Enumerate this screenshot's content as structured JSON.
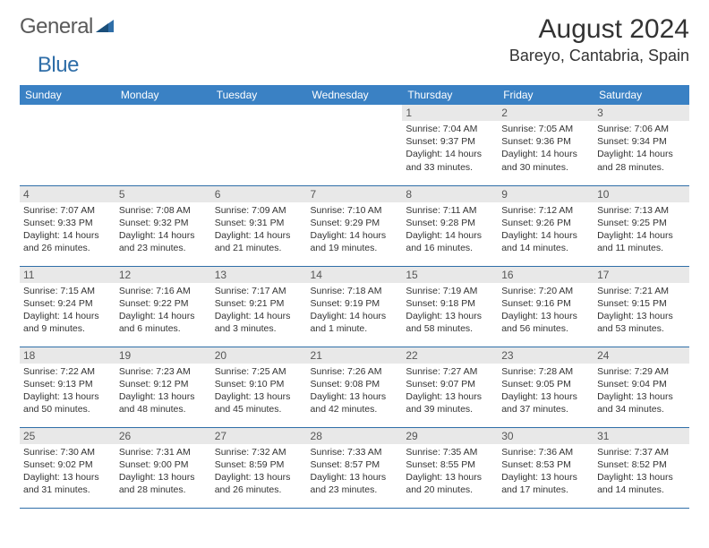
{
  "logo": {
    "text1": "General",
    "text2": "Blue"
  },
  "title": "August 2024",
  "location": "Bareyo, Cantabria, Spain",
  "colors": {
    "header_bg": "#3a81c4",
    "header_fg": "#ffffff",
    "daynum_bg": "#e8e8e8",
    "rule": "#2f6ea8",
    "text": "#333333",
    "logo_gray": "#5a5a5a",
    "logo_blue": "#2f6ea8"
  },
  "weekdays": [
    "Sunday",
    "Monday",
    "Tuesday",
    "Wednesday",
    "Thursday",
    "Friday",
    "Saturday"
  ],
  "leading_blanks": 4,
  "days": [
    {
      "n": "1",
      "sunrise": "7:04 AM",
      "sunset": "9:37 PM",
      "daylight": "14 hours and 33 minutes."
    },
    {
      "n": "2",
      "sunrise": "7:05 AM",
      "sunset": "9:36 PM",
      "daylight": "14 hours and 30 minutes."
    },
    {
      "n": "3",
      "sunrise": "7:06 AM",
      "sunset": "9:34 PM",
      "daylight": "14 hours and 28 minutes."
    },
    {
      "n": "4",
      "sunrise": "7:07 AM",
      "sunset": "9:33 PM",
      "daylight": "14 hours and 26 minutes."
    },
    {
      "n": "5",
      "sunrise": "7:08 AM",
      "sunset": "9:32 PM",
      "daylight": "14 hours and 23 minutes."
    },
    {
      "n": "6",
      "sunrise": "7:09 AM",
      "sunset": "9:31 PM",
      "daylight": "14 hours and 21 minutes."
    },
    {
      "n": "7",
      "sunrise": "7:10 AM",
      "sunset": "9:29 PM",
      "daylight": "14 hours and 19 minutes."
    },
    {
      "n": "8",
      "sunrise": "7:11 AM",
      "sunset": "9:28 PM",
      "daylight": "14 hours and 16 minutes."
    },
    {
      "n": "9",
      "sunrise": "7:12 AM",
      "sunset": "9:26 PM",
      "daylight": "14 hours and 14 minutes."
    },
    {
      "n": "10",
      "sunrise": "7:13 AM",
      "sunset": "9:25 PM",
      "daylight": "14 hours and 11 minutes."
    },
    {
      "n": "11",
      "sunrise": "7:15 AM",
      "sunset": "9:24 PM",
      "daylight": "14 hours and 9 minutes."
    },
    {
      "n": "12",
      "sunrise": "7:16 AM",
      "sunset": "9:22 PM",
      "daylight": "14 hours and 6 minutes."
    },
    {
      "n": "13",
      "sunrise": "7:17 AM",
      "sunset": "9:21 PM",
      "daylight": "14 hours and 3 minutes."
    },
    {
      "n": "14",
      "sunrise": "7:18 AM",
      "sunset": "9:19 PM",
      "daylight": "14 hours and 1 minute."
    },
    {
      "n": "15",
      "sunrise": "7:19 AM",
      "sunset": "9:18 PM",
      "daylight": "13 hours and 58 minutes."
    },
    {
      "n": "16",
      "sunrise": "7:20 AM",
      "sunset": "9:16 PM",
      "daylight": "13 hours and 56 minutes."
    },
    {
      "n": "17",
      "sunrise": "7:21 AM",
      "sunset": "9:15 PM",
      "daylight": "13 hours and 53 minutes."
    },
    {
      "n": "18",
      "sunrise": "7:22 AM",
      "sunset": "9:13 PM",
      "daylight": "13 hours and 50 minutes."
    },
    {
      "n": "19",
      "sunrise": "7:23 AM",
      "sunset": "9:12 PM",
      "daylight": "13 hours and 48 minutes."
    },
    {
      "n": "20",
      "sunrise": "7:25 AM",
      "sunset": "9:10 PM",
      "daylight": "13 hours and 45 minutes."
    },
    {
      "n": "21",
      "sunrise": "7:26 AM",
      "sunset": "9:08 PM",
      "daylight": "13 hours and 42 minutes."
    },
    {
      "n": "22",
      "sunrise": "7:27 AM",
      "sunset": "9:07 PM",
      "daylight": "13 hours and 39 minutes."
    },
    {
      "n": "23",
      "sunrise": "7:28 AM",
      "sunset": "9:05 PM",
      "daylight": "13 hours and 37 minutes."
    },
    {
      "n": "24",
      "sunrise": "7:29 AM",
      "sunset": "9:04 PM",
      "daylight": "13 hours and 34 minutes."
    },
    {
      "n": "25",
      "sunrise": "7:30 AM",
      "sunset": "9:02 PM",
      "daylight": "13 hours and 31 minutes."
    },
    {
      "n": "26",
      "sunrise": "7:31 AM",
      "sunset": "9:00 PM",
      "daylight": "13 hours and 28 minutes."
    },
    {
      "n": "27",
      "sunrise": "7:32 AM",
      "sunset": "8:59 PM",
      "daylight": "13 hours and 26 minutes."
    },
    {
      "n": "28",
      "sunrise": "7:33 AM",
      "sunset": "8:57 PM",
      "daylight": "13 hours and 23 minutes."
    },
    {
      "n": "29",
      "sunrise": "7:35 AM",
      "sunset": "8:55 PM",
      "daylight": "13 hours and 20 minutes."
    },
    {
      "n": "30",
      "sunrise": "7:36 AM",
      "sunset": "8:53 PM",
      "daylight": "13 hours and 17 minutes."
    },
    {
      "n": "31",
      "sunrise": "7:37 AM",
      "sunset": "8:52 PM",
      "daylight": "13 hours and 14 minutes."
    }
  ],
  "labels": {
    "sunrise": "Sunrise:",
    "sunset": "Sunset:",
    "daylight": "Daylight:"
  }
}
